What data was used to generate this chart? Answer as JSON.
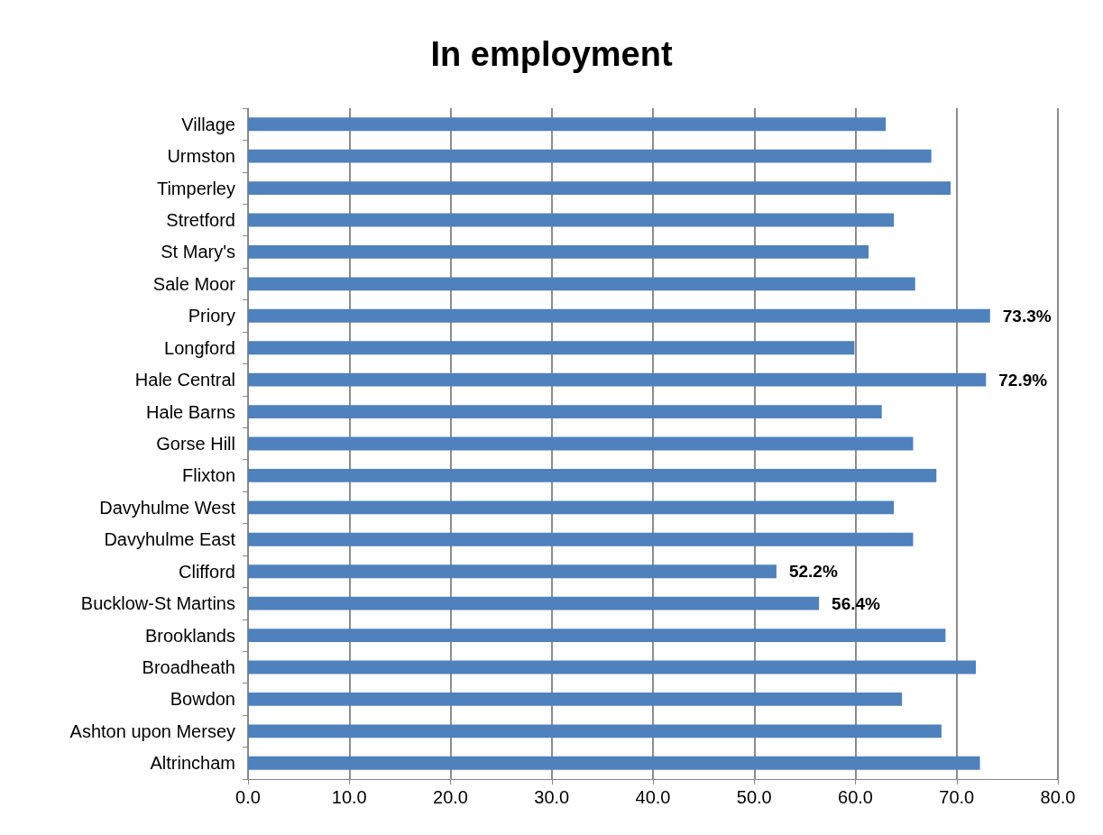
{
  "chart_data": {
    "type": "bar",
    "orientation": "horizontal",
    "title": "In employment",
    "categories": [
      "Village",
      "Urmston",
      "Timperley",
      "Stretford",
      "St Mary's",
      "Sale Moor",
      "Priory",
      "Longford",
      "Hale Central",
      "Hale Barns",
      "Gorse Hill",
      "Flixton",
      "Davyhulme West",
      "Davyhulme East",
      "Clifford",
      "Bucklow-St Martins",
      "Brooklands",
      "Broadheath",
      "Bowdon",
      "Ashton upon Mersey",
      "Altrincham"
    ],
    "values": [
      63.0,
      67.5,
      69.4,
      63.8,
      61.3,
      65.9,
      73.3,
      59.9,
      72.9,
      62.6,
      65.7,
      68.0,
      63.8,
      65.7,
      52.2,
      56.4,
      68.9,
      71.9,
      64.6,
      68.5,
      72.3
    ],
    "value_labels": [
      null,
      null,
      null,
      null,
      null,
      null,
      "73.3%",
      null,
      "72.9%",
      null,
      null,
      null,
      null,
      null,
      "52.2%",
      "56.4%",
      null,
      null,
      null,
      null,
      null
    ],
    "color": "#4f81bd",
    "xlim": [
      0,
      80
    ],
    "xticks": [
      {
        "value": 0,
        "label": "0.0"
      },
      {
        "value": 10,
        "label": "10.0"
      },
      {
        "value": 20,
        "label": "20.0"
      },
      {
        "value": 30,
        "label": "30.0"
      },
      {
        "value": 40,
        "label": "40.0"
      },
      {
        "value": 50,
        "label": "50.0"
      },
      {
        "value": 60,
        "label": "60.0"
      },
      {
        "value": 70,
        "label": "70.0"
      },
      {
        "value": 80,
        "label": "80.0"
      }
    ],
    "grid": "x"
  }
}
